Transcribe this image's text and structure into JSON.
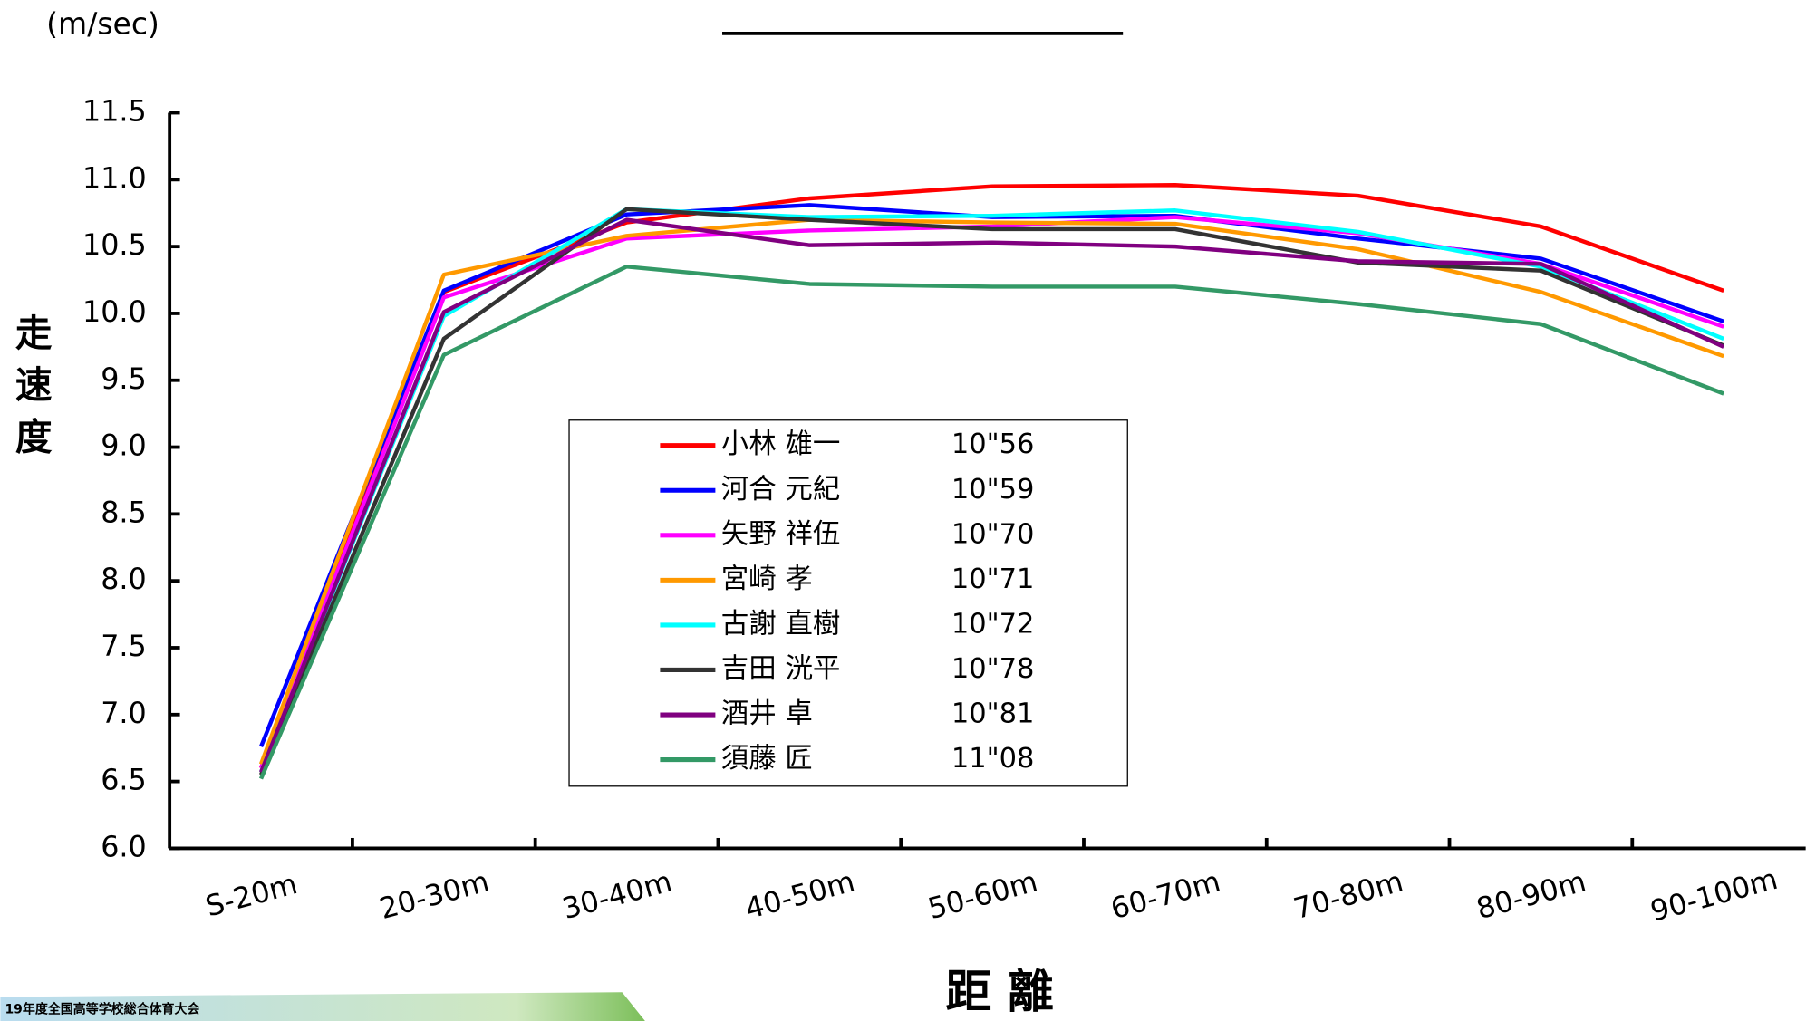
{
  "chart_data": {
    "type": "line",
    "y_unit": "(m/sec)",
    "y_label": [
      "走",
      "速",
      "度"
    ],
    "x_label": "距 離",
    "banner": "19年度全国高等学校総合体育大会",
    "categories": [
      "S-20m",
      "20-30m",
      "30-40m",
      "40-50m",
      "50-60m",
      "60-70m",
      "70-80m",
      "80-90m",
      "90-100m"
    ],
    "ylim": [
      6.0,
      11.5
    ],
    "yticks": [
      {
        "value": 6,
        "label": "6.0"
      },
      6.5,
      {
        "value": 7,
        "label": "7.0"
      },
      7.5,
      {
        "value": 8,
        "label": "8.0"
      },
      8.5,
      {
        "value": 9,
        "label": "9.0"
      },
      9.5,
      {
        "value": 10,
        "label": "10.0"
      },
      10.5,
      {
        "value": 11,
        "label": "11.0"
      },
      11.5
    ],
    "series": [
      {
        "name": "小林 雄一",
        "time": "10\"56",
        "color": "#ff0000",
        "values": [
          6.6,
          10.16,
          10.68,
          10.86,
          10.95,
          10.96,
          10.88,
          10.65,
          10.17
        ]
      },
      {
        "name": "河合 元紀",
        "time": "10\"59",
        "color": "#0000ff",
        "values": [
          6.76,
          10.17,
          10.74,
          10.81,
          10.72,
          10.73,
          10.56,
          10.41,
          9.94
        ]
      },
      {
        "name": "矢野 祥伍",
        "time": "10\"70",
        "color": "#ff00ff",
        "values": [
          6.6,
          10.12,
          10.56,
          10.62,
          10.65,
          10.72,
          10.6,
          10.37,
          9.9
        ]
      },
      {
        "name": "宮崎 孝",
        "time": "10\"71",
        "color": "#ff9900",
        "values": [
          6.63,
          10.29,
          10.58,
          10.7,
          10.68,
          10.67,
          10.48,
          10.16,
          9.68
        ]
      },
      {
        "name": "古謝 直樹",
        "time": "10\"72",
        "color": "#00ffff",
        "values": [
          6.57,
          9.98,
          10.78,
          10.72,
          10.73,
          10.77,
          10.61,
          10.35,
          9.81
        ]
      },
      {
        "name": "吉田 洸平",
        "time": "10\"78",
        "color": "#333333",
        "values": [
          6.55,
          9.81,
          10.78,
          10.7,
          10.63,
          10.63,
          10.38,
          10.32,
          9.76
        ]
      },
      {
        "name": "酒井 卓",
        "time": "10\"81",
        "color": "#800080",
        "values": [
          6.57,
          10.01,
          10.7,
          10.51,
          10.53,
          10.5,
          10.39,
          10.37,
          9.75
        ]
      },
      {
        "name": "須藤 匠",
        "time": "11\"08",
        "color": "#339966",
        "values": [
          6.52,
          9.69,
          10.35,
          10.22,
          10.2,
          10.2,
          10.07,
          9.92,
          9.4
        ]
      }
    ]
  }
}
